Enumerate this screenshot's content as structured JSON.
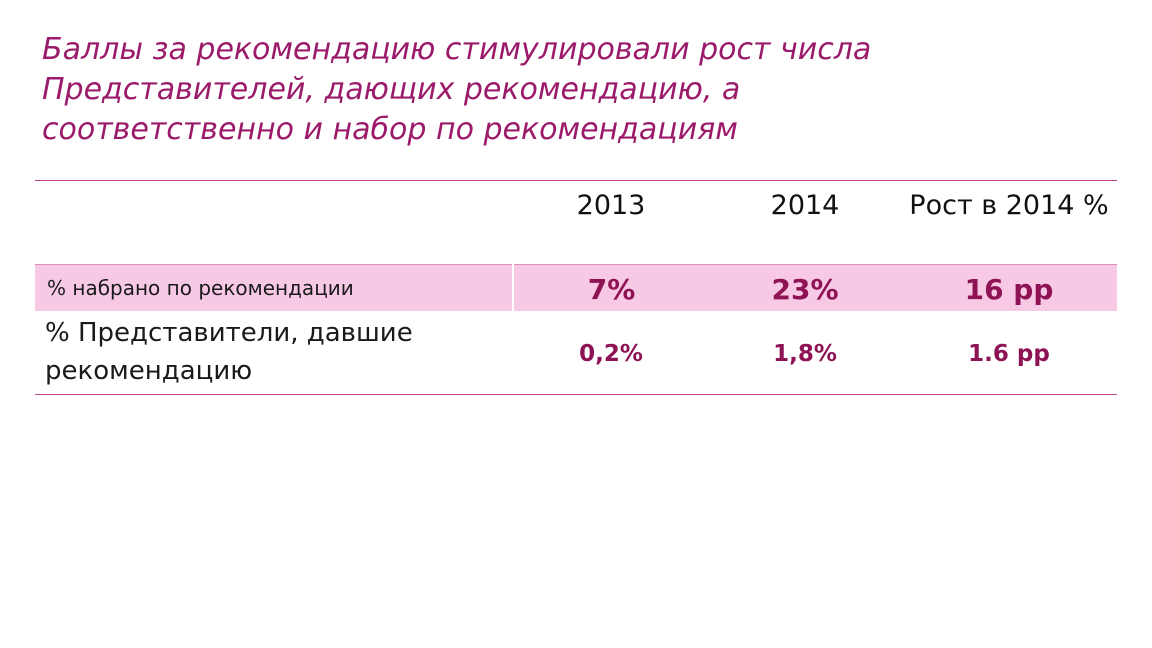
{
  "title": {
    "lines": [
      "Баллы за рекомендацию стимулировали рост числа",
      "Представителей, дающих рекомендацию, а",
      "соответственно и набор по рекомендациям"
    ]
  },
  "table": {
    "headers": [
      "",
      "2013",
      "2014",
      "Рост в 2014 %"
    ],
    "rows": [
      {
        "label": "% набрано по рекомендации",
        "values": [
          "7%",
          "23%",
          "16 pp"
        ]
      },
      {
        "label": "% Представители, давшие рекомендацию",
        "values": [
          "0,2%",
          "1,8%",
          "1.6 pp"
        ]
      }
    ]
  },
  "colors": {
    "title": "#9b1a6a",
    "highlight_row_background": "#f7c9e4",
    "value_text": "#8e1355",
    "rule_lines": "#c2478f"
  }
}
